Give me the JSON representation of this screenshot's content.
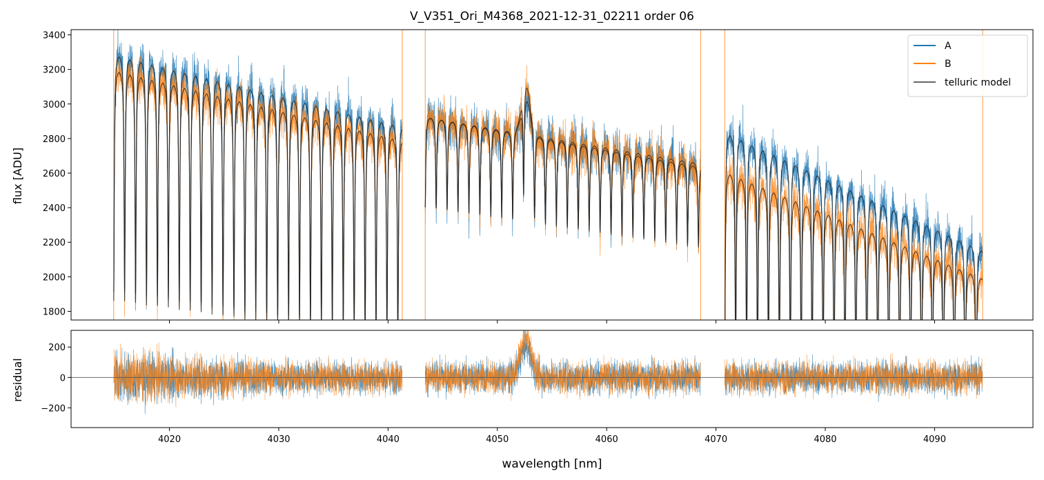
{
  "chart_data": [
    {
      "type": "line",
      "panel": "flux",
      "title": "V_V351_Ori_M4368_2021-12-31_02211  order 06",
      "xlabel": "",
      "ylabel": "flux [ADU]",
      "xlim": [
        4011,
        4099
      ],
      "ylim": [
        1750,
        3430
      ],
      "xticks": [
        4020,
        4030,
        4040,
        4050,
        4060,
        4070,
        4080,
        4090
      ],
      "yticks": [
        1800,
        2000,
        2200,
        2400,
        2600,
        2800,
        3000,
        3200,
        3400
      ],
      "legend_position": "top-right",
      "segments": [
        {
          "x": [
            4014.9,
            4041.3
          ],
          "A_continuum": [
            3300,
            2880
          ],
          "B_continuum": [
            3210,
            2800
          ],
          "line_spacing": 1.0,
          "line_depth_fraction": 0.42
        },
        {
          "x": [
            4043.4,
            4068.6
          ],
          "A_continuum": [
            2930,
            2660
          ],
          "B_continuum": [
            2930,
            2640
          ],
          "line_spacing": 1.0,
          "line_depth_fraction": 0.18,
          "emission_center": 4052.6,
          "emission_height": 300
        },
        {
          "x": [
            4070.8,
            4094.4
          ],
          "A_continuum": [
            2850,
            2160
          ],
          "B_continuum": [
            2620,
            2000
          ],
          "line_spacing": 1.0,
          "line_depth_fraction": 0.45
        }
      ],
      "series": [
        {
          "name": "A",
          "color": "#1f77b4"
        },
        {
          "name": "B",
          "color": "#ff7f0e"
        },
        {
          "name": "telluric model",
          "color": "#444444"
        }
      ]
    },
    {
      "type": "line",
      "panel": "residual",
      "xlabel": "wavelength [nm]",
      "ylabel": "residual",
      "xlim": [
        4011,
        4099
      ],
      "ylim": [
        -330,
        310
      ],
      "xticks": [
        4020,
        4030,
        4040,
        4050,
        4060,
        4070,
        4080,
        4090
      ],
      "yticks": [
        -200,
        0,
        200
      ],
      "zero_line": 0,
      "noise_amplitude": 110,
      "emission_center": 4052.6,
      "emission_height": 260,
      "series": [
        {
          "name": "A",
          "color": "#1f77b4"
        },
        {
          "name": "B",
          "color": "#ff7f0e"
        }
      ]
    }
  ]
}
